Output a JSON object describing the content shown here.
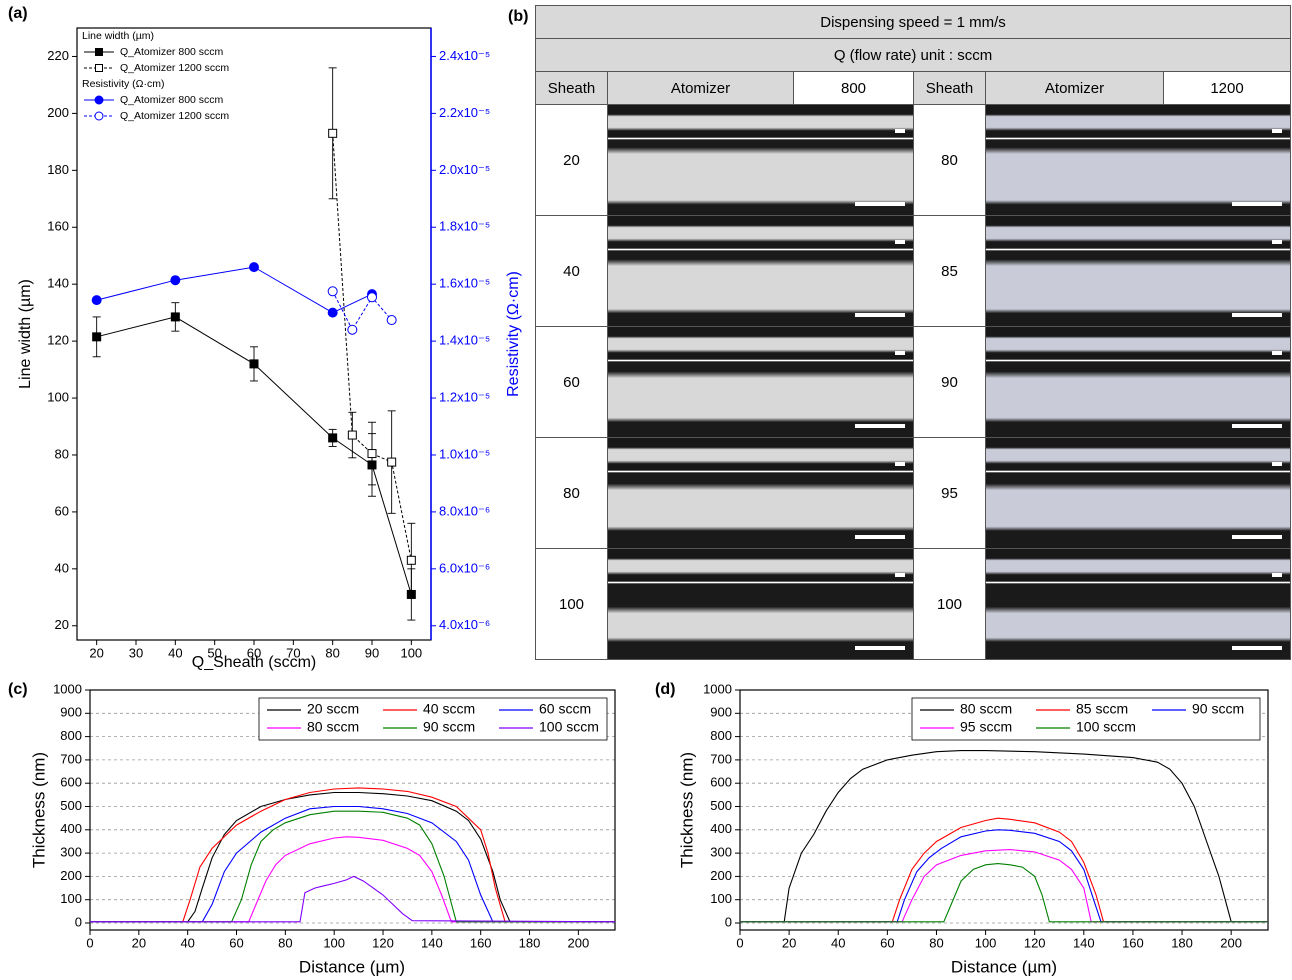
{
  "chart_data": [
    {
      "type": "line",
      "label": "(a)",
      "x_label": "Q_Sheath (sccm)",
      "y_label": "Line width (µm)",
      "y2_label": "Resistivity (Ω·cm)",
      "y2_color": "#0000ff",
      "xlim": [
        15,
        105
      ],
      "xticks": [
        20,
        30,
        40,
        50,
        60,
        70,
        80,
        90,
        100
      ],
      "ylim": [
        15,
        230
      ],
      "yticks": [
        20,
        40,
        60,
        80,
        100,
        120,
        140,
        160,
        180,
        200,
        220
      ],
      "y2lim": [
        3.5e-06,
        2.5e-05
      ],
      "y2ticks": [
        {
          "value": 4e-06,
          "label": "4.0x10⁻⁶"
        },
        {
          "value": 6e-06,
          "label": "6.0x10⁻⁶"
        },
        {
          "value": 8e-06,
          "label": "8.0x10⁻⁶"
        },
        {
          "value": 1e-05,
          "label": "1.0x10⁻⁵"
        },
        {
          "value": 1.2e-05,
          "label": "1.2x10⁻⁵"
        },
        {
          "value": 1.4e-05,
          "label": "1.4x10⁻⁵"
        },
        {
          "value": 1.6e-05,
          "label": "1.6x10⁻⁵"
        },
        {
          "value": 1.8e-05,
          "label": "1.8x10⁻⁵"
        },
        {
          "value": 2e-05,
          "label": "2.0x10⁻⁵"
        },
        {
          "value": 2.2e-05,
          "label": "2.2x10⁻⁵"
        },
        {
          "value": 2.4e-05,
          "label": "2.4x10⁻⁵"
        }
      ],
      "grid": false,
      "legend": "upper left",
      "legend_titles": [
        "Line width (µm)",
        "Resistivity (Ω·cm)"
      ],
      "series": [
        {
          "name": "Q_Atomizer 800 sccm",
          "color": "#000000",
          "marker": "square",
          "filled": true,
          "dash": false,
          "x": [
            20,
            40,
            60,
            80,
            90,
            100
          ],
          "values": [
            121.5,
            128.5,
            112,
            86,
            76.5,
            31
          ],
          "errors": [
            7,
            5,
            6,
            3,
            11,
            9
          ]
        },
        {
          "name": "Q_Atomizer 1200 sccm",
          "color": "#000000",
          "marker": "square",
          "filled": false,
          "dash": true,
          "x": [
            80,
            85,
            90,
            95,
            100
          ],
          "values": [
            193,
            87,
            80.5,
            77.5,
            43
          ],
          "errors": [
            23,
            8,
            11,
            18,
            13
          ]
        },
        {
          "name": "Q_Atomizer 800 sccm",
          "color": "#0000ff",
          "marker": "circle",
          "filled": true,
          "dash": false,
          "axis": "y2",
          "x": [
            20,
            40,
            60,
            80,
            90
          ],
          "values": [
            1.544e-05,
            1.614e-05,
            1.66e-05,
            1.5e-05,
            1.565e-05
          ]
        },
        {
          "name": "Q_Atomizer 1200 sccm",
          "color": "#0000ff",
          "marker": "circle",
          "filled": false,
          "dash": true,
          "axis": "y2",
          "x": [
            80,
            85,
            90,
            95
          ],
          "values": [
            1.575e-05,
            1.44e-05,
            1.554e-05,
            1.474e-05
          ]
        }
      ]
    },
    {
      "type": "line",
      "label": "(c)",
      "x_label": "Distance (µm)",
      "y_label": "Thickness (nm)",
      "xlim": [
        0,
        215
      ],
      "xticks": [
        0,
        20,
        40,
        60,
        80,
        100,
        120,
        140,
        160,
        180,
        200
      ],
      "ylim": [
        -30,
        1000
      ],
      "yticks": [
        0,
        100,
        200,
        300,
        400,
        500,
        600,
        700,
        800,
        900,
        1000
      ],
      "grid": true,
      "legend": "upper right",
      "legend_columns": 3,
      "series": [
        {
          "name": "20 sccm",
          "color": "#000000",
          "x": [
            0,
            40,
            43,
            46,
            50,
            55,
            60,
            70,
            80,
            90,
            100,
            110,
            120,
            130,
            140,
            150,
            155,
            160,
            165,
            168,
            172,
            215
          ],
          "values": [
            5,
            5,
            50,
            150,
            280,
            380,
            440,
            500,
            530,
            550,
            560,
            560,
            555,
            545,
            525,
            480,
            440,
            360,
            220,
            100,
            5,
            5
          ]
        },
        {
          "name": "40 sccm",
          "color": "#ff0000",
          "x": [
            0,
            38,
            41,
            45,
            50,
            60,
            70,
            80,
            90,
            100,
            110,
            120,
            130,
            140,
            150,
            160,
            163,
            166,
            170,
            215
          ],
          "values": [
            5,
            5,
            100,
            240,
            320,
            420,
            480,
            530,
            560,
            575,
            580,
            575,
            565,
            540,
            500,
            400,
            300,
            150,
            5,
            5
          ]
        },
        {
          "name": "60 sccm",
          "color": "#0000ff",
          "x": [
            0,
            46,
            50,
            55,
            60,
            70,
            80,
            90,
            100,
            110,
            120,
            130,
            140,
            150,
            155,
            160,
            165,
            215
          ],
          "values": [
            5,
            5,
            80,
            220,
            300,
            390,
            450,
            490,
            500,
            500,
            490,
            470,
            430,
            350,
            270,
            120,
            5,
            5
          ]
        },
        {
          "name": "80 sccm",
          "color": "#ff00ff",
          "x": [
            0,
            65,
            68,
            72,
            76,
            80,
            90,
            100,
            105,
            110,
            120,
            130,
            135,
            140,
            144,
            148,
            215
          ],
          "values": [
            5,
            5,
            80,
            180,
            250,
            290,
            340,
            365,
            370,
            368,
            355,
            320,
            290,
            220,
            120,
            5,
            5
          ]
        },
        {
          "name": "90 sccm",
          "color": "#008000",
          "x": [
            0,
            58,
            62,
            66,
            70,
            75,
            80,
            90,
            100,
            110,
            120,
            130,
            135,
            140,
            145,
            150,
            215
          ],
          "values": [
            5,
            5,
            100,
            250,
            350,
            400,
            430,
            465,
            480,
            480,
            475,
            450,
            420,
            340,
            200,
            5,
            5
          ]
        },
        {
          "name": "100 sccm",
          "color": "#8000ff",
          "x": [
            0,
            86,
            88,
            92,
            96,
            100,
            105,
            108,
            112,
            116,
            120,
            124,
            128,
            132,
            215
          ],
          "values": [
            5,
            5,
            130,
            150,
            160,
            170,
            185,
            200,
            180,
            150,
            120,
            80,
            40,
            10,
            5
          ]
        }
      ]
    },
    {
      "type": "line",
      "label": "(d)",
      "x_label": "Distance (µm)",
      "y_label": "Thickness (nm)",
      "xlim": [
        0,
        215
      ],
      "xticks": [
        0,
        20,
        40,
        60,
        80,
        100,
        120,
        140,
        160,
        180,
        200
      ],
      "ylim": [
        -30,
        1000
      ],
      "yticks": [
        0,
        100,
        200,
        300,
        400,
        500,
        600,
        700,
        800,
        900,
        1000
      ],
      "grid": true,
      "legend": "upper right",
      "legend_columns": 3,
      "series": [
        {
          "name": "80 sccm",
          "color": "#000000",
          "x": [
            0,
            18,
            20,
            25,
            30,
            35,
            40,
            45,
            50,
            60,
            70,
            80,
            90,
            100,
            120,
            140,
            160,
            170,
            175,
            180,
            185,
            190,
            195,
            200,
            215
          ],
          "values": [
            5,
            5,
            150,
            300,
            380,
            480,
            560,
            620,
            660,
            700,
            720,
            735,
            740,
            740,
            735,
            725,
            710,
            690,
            660,
            600,
            500,
            350,
            200,
            5,
            5
          ]
        },
        {
          "name": "85 sccm",
          "color": "#ff0000",
          "x": [
            0,
            62,
            65,
            70,
            75,
            80,
            90,
            100,
            105,
            110,
            120,
            130,
            135,
            140,
            145,
            148,
            215
          ],
          "values": [
            5,
            5,
            100,
            230,
            300,
            350,
            410,
            440,
            450,
            445,
            430,
            390,
            350,
            260,
            120,
            5,
            5
          ]
        },
        {
          "name": "90 sccm",
          "color": "#0000ff",
          "x": [
            0,
            64,
            67,
            72,
            77,
            82,
            90,
            100,
            105,
            110,
            120,
            130,
            135,
            140,
            144,
            147,
            215
          ],
          "values": [
            5,
            5,
            100,
            220,
            280,
            320,
            370,
            395,
            400,
            398,
            385,
            350,
            310,
            230,
            100,
            5,
            5
          ]
        },
        {
          "name": "95 sccm",
          "color": "#ff00ff",
          "x": [
            0,
            66,
            70,
            75,
            80,
            90,
            100,
            110,
            120,
            130,
            135,
            140,
            143,
            215
          ],
          "values": [
            5,
            5,
            100,
            200,
            250,
            290,
            310,
            315,
            305,
            270,
            230,
            150,
            5,
            5
          ]
        },
        {
          "name": "100 sccm",
          "color": "#008000",
          "x": [
            0,
            83,
            86,
            90,
            95,
            100,
            105,
            110,
            115,
            120,
            123,
            126,
            215
          ],
          "values": [
            5,
            5,
            80,
            180,
            230,
            250,
            255,
            250,
            240,
            200,
            120,
            5,
            5
          ]
        }
      ]
    }
  ],
  "panel_b": {
    "label": "(b)",
    "title": "Dispensing speed = 1 mm/s",
    "subtitle": "Q (flow rate) unit : sccm",
    "columns": [
      "Sheath",
      "Atomizer",
      "800",
      "Sheath",
      "Atomizer",
      "1200"
    ],
    "rows": [
      [
        "20",
        "80"
      ],
      [
        "40",
        "85"
      ],
      [
        "60",
        "90"
      ],
      [
        "80",
        "95"
      ],
      [
        "100",
        "100"
      ]
    ]
  }
}
